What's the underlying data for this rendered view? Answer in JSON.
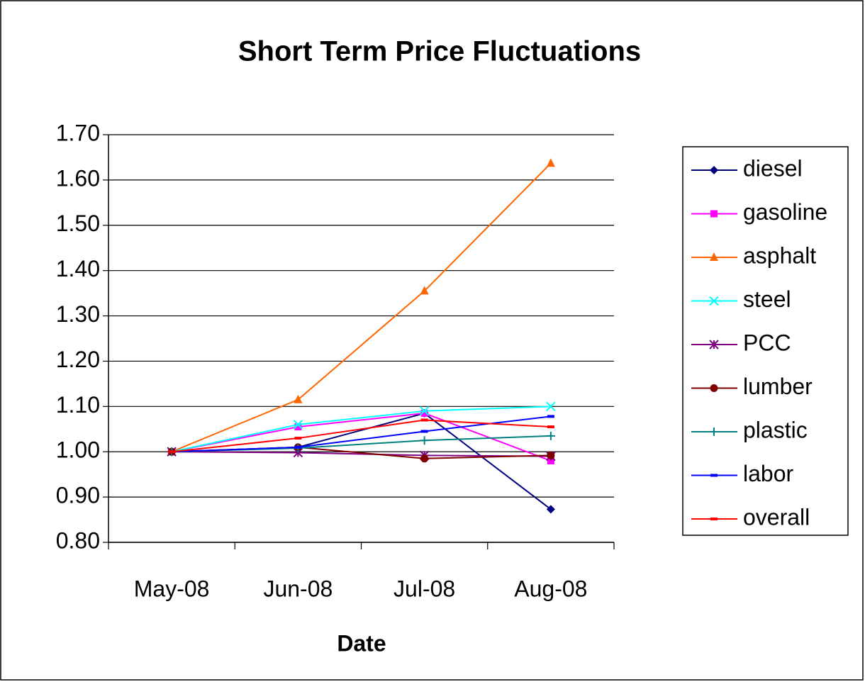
{
  "chart_data": {
    "type": "line",
    "title": "Short Term Price Fluctuations",
    "x_label": "Date",
    "categories": [
      "May-08",
      "Jun-08",
      "Jul-08",
      "Aug-08"
    ],
    "series": [
      {
        "name": "diesel",
        "color": "#000080",
        "marker": "diamond",
        "values": [
          1.0,
          1.01,
          1.085,
          0.873
        ]
      },
      {
        "name": "gasoline",
        "color": "#ff00ff",
        "marker": "square",
        "values": [
          1.0,
          1.055,
          1.085,
          0.98
        ]
      },
      {
        "name": "asphalt",
        "color": "#ff6600",
        "marker": "triangle",
        "values": [
          1.0,
          1.115,
          1.355,
          1.637
        ]
      },
      {
        "name": "steel",
        "color": "#00ffff",
        "marker": "x",
        "values": [
          1.0,
          1.06,
          1.09,
          1.1
        ]
      },
      {
        "name": "PCC",
        "color": "#800080",
        "marker": "asterisk",
        "values": [
          1.0,
          0.998,
          0.992,
          0.99
        ]
      },
      {
        "name": "lumber",
        "color": "#800000",
        "marker": "circle",
        "values": [
          1.0,
          1.01,
          0.985,
          0.992
        ]
      },
      {
        "name": "plastic",
        "color": "#008080",
        "marker": "plus",
        "values": [
          1.0,
          1.008,
          1.025,
          1.035
        ]
      },
      {
        "name": "labor",
        "color": "#0000ff",
        "marker": "dash",
        "values": [
          1.0,
          1.01,
          1.045,
          1.078
        ]
      },
      {
        "name": "overall",
        "color": "#ff0000",
        "marker": "dash",
        "values": [
          1.0,
          1.03,
          1.07,
          1.055
        ]
      }
    ],
    "ylim": [
      0.8,
      1.7
    ],
    "yticks": [
      {
        "value": 0.8,
        "label": "0.80"
      },
      {
        "value": 0.9,
        "label": "0.90"
      },
      {
        "value": 1.0,
        "label": "1.00"
      },
      {
        "value": 1.1,
        "label": "1.10"
      },
      {
        "value": 1.2,
        "label": "1.20"
      },
      {
        "value": 1.3,
        "label": "1.30"
      },
      {
        "value": 1.4,
        "label": "1.40"
      },
      {
        "value": 1.5,
        "label": "1.50"
      },
      {
        "value": 1.6,
        "label": "1.60"
      },
      {
        "value": 1.7,
        "label": "1.70"
      }
    ],
    "grid": true,
    "legend": "right"
  }
}
